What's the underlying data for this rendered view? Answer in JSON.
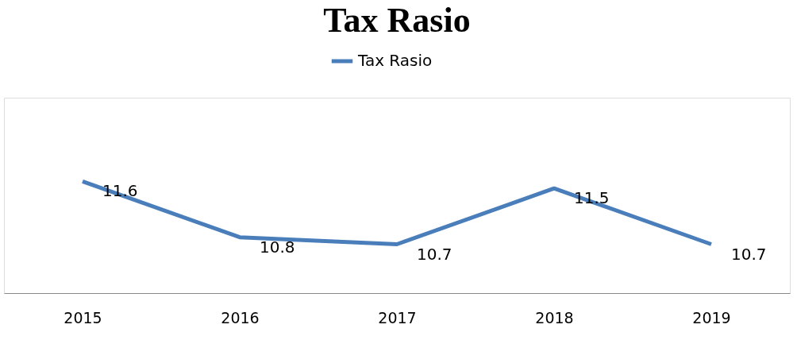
{
  "chart_data": {
    "type": "line",
    "title": "Tax Rasio",
    "categories": [
      "2015",
      "2016",
      "2017",
      "2018",
      "2019"
    ],
    "series": [
      {
        "name": "Tax Rasio",
        "color": "#4a7ebb",
        "values": [
          11.6,
          10.8,
          10.7,
          11.5,
          10.7
        ]
      }
    ],
    "ylim": [
      10,
      12.8
    ],
    "data_labels": true,
    "legend": "top",
    "grid": false,
    "tick_labels": "x",
    "marker": "none",
    "line_style": "solid"
  }
}
